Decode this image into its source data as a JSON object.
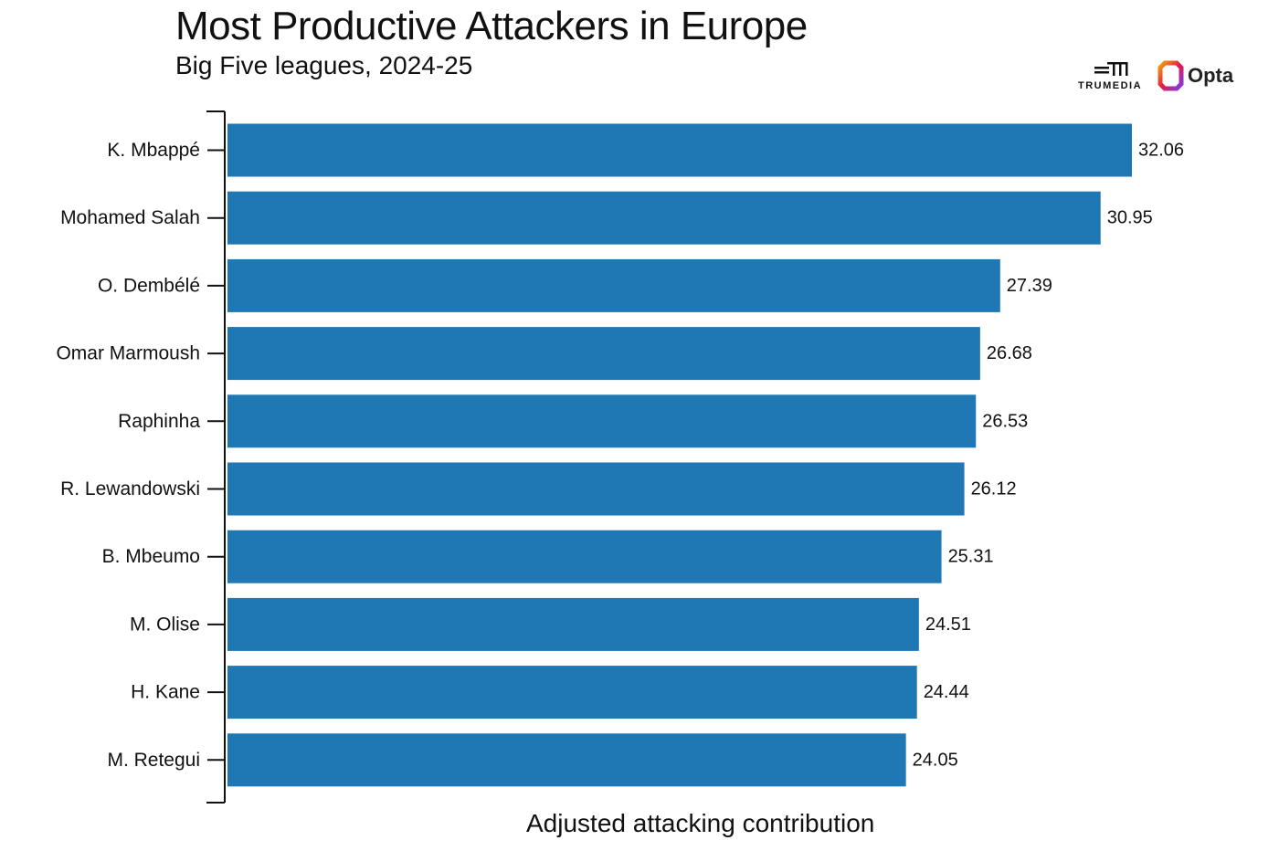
{
  "title": "Most Productive Attackers in Europe",
  "subtitle": "Big Five leagues, 2024-25",
  "logos": {
    "trumedia": "TRUMEDIA",
    "opta": "Opta"
  },
  "colors": {
    "bar": "#1f77b4",
    "text": "#111111",
    "axis": "#111111"
  },
  "chart_data": {
    "type": "bar",
    "orientation": "horizontal",
    "title": "Most Productive Attackers in Europe",
    "subtitle": "Big Five leagues, 2024-25",
    "xlabel": "Adjusted attacking contribution",
    "ylabel": "",
    "categories": [
      "K. Mbappé",
      "Mohamed Salah",
      "O. Dembélé",
      "Omar Marmoush",
      "Raphinha",
      "R. Lewandowski",
      "B. Mbeumo",
      "M. Olise",
      "H. Kane",
      "M. Retegui"
    ],
    "values": [
      32.06,
      30.95,
      27.39,
      26.68,
      26.53,
      26.12,
      25.31,
      24.51,
      24.44,
      24.05
    ],
    "value_labels": [
      "32.06",
      "30.95",
      "27.39",
      "26.68",
      "26.53",
      "26.12",
      "25.31",
      "24.51",
      "24.44",
      "24.05"
    ],
    "xlim": [
      0,
      32.06
    ],
    "grid": false,
    "legend": "none"
  }
}
